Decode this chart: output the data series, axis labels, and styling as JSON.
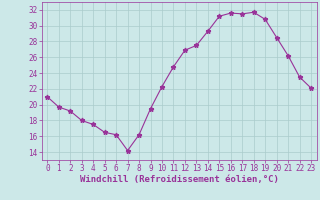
{
  "x": [
    0,
    1,
    2,
    3,
    4,
    5,
    6,
    7,
    8,
    9,
    10,
    11,
    12,
    13,
    14,
    15,
    16,
    17,
    18,
    19,
    20,
    21,
    22,
    23
  ],
  "y": [
    21.0,
    19.7,
    19.2,
    18.0,
    17.5,
    16.5,
    16.2,
    14.2,
    16.2,
    19.5,
    22.3,
    24.8,
    26.9,
    27.5,
    29.3,
    31.2,
    31.6,
    31.5,
    31.7,
    30.8,
    28.5,
    26.2,
    23.5,
    22.1
  ],
  "line_color": "#993399",
  "marker": "*",
  "bg_color": "#cce8e8",
  "grid_color": "#aacccc",
  "axis_color": "#993399",
  "xlabel": "Windchill (Refroidissement éolien,°C)",
  "ylim": [
    13,
    33
  ],
  "xlim": [
    -0.5,
    23.5
  ],
  "yticks": [
    14,
    16,
    18,
    20,
    22,
    24,
    26,
    28,
    30,
    32
  ],
  "xticks": [
    0,
    1,
    2,
    3,
    4,
    5,
    6,
    7,
    8,
    9,
    10,
    11,
    12,
    13,
    14,
    15,
    16,
    17,
    18,
    19,
    20,
    21,
    22,
    23
  ],
  "tick_fontsize": 5.5,
  "label_fontsize": 6.5
}
